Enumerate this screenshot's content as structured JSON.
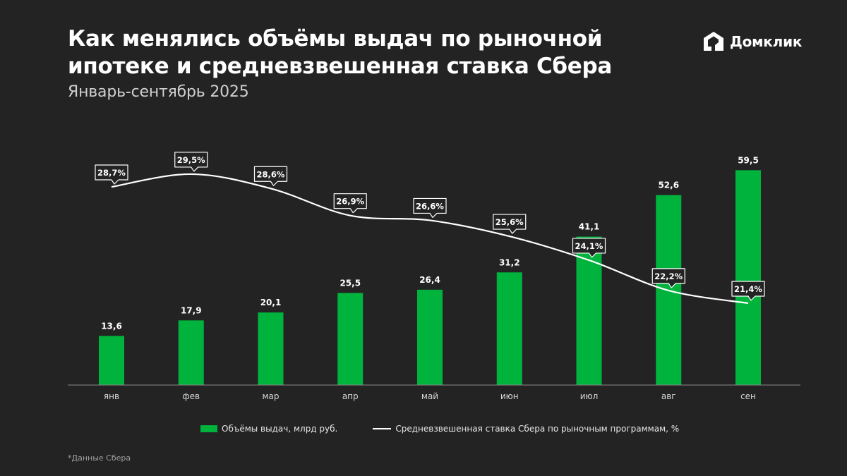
{
  "header": {
    "title_line1": "Как менялись объёмы выдач по рыночной",
    "title_line2": "ипотеке и средневзвешенная ставка Сбера",
    "subtitle": "Январь-сентябрь 2025"
  },
  "brand": {
    "name": "Домклик",
    "logo_icon": "domclick-house-icon"
  },
  "colors": {
    "background": "#232323",
    "bar": "#00b33c",
    "line": "#ffffff",
    "text": "#ffffff",
    "muted": "#cfcfcf"
  },
  "chart_data": {
    "type": "bar",
    "categories": [
      "янв",
      "фев",
      "мар",
      "апр",
      "май",
      "июн",
      "июл",
      "авг",
      "сен"
    ],
    "series": [
      {
        "name": "Объёмы выдач, млрд руб.",
        "type": "bar",
        "values": [
          13.6,
          17.9,
          20.1,
          25.5,
          26.4,
          31.2,
          41.1,
          52.6,
          59.5
        ],
        "labels": [
          "13,6",
          "17,9",
          "20,1",
          "25,5",
          "26,4",
          "31,2",
          "41,1",
          "52,6",
          "59,5"
        ]
      },
      {
        "name": "Средневзвешенная ставка Сбера по рыночным программам, %",
        "type": "line",
        "values": [
          28.7,
          29.5,
          28.6,
          26.9,
          26.6,
          25.6,
          24.1,
          22.2,
          21.4
        ],
        "labels": [
          "28,7%",
          "29,5%",
          "28,6%",
          "26,9%",
          "26,6%",
          "25,6%",
          "24,1%",
          "22,2%",
          "21,4%"
        ]
      }
    ],
    "legend_position": "bottom",
    "grid": false
  },
  "footnote": "*Данные Сбера"
}
